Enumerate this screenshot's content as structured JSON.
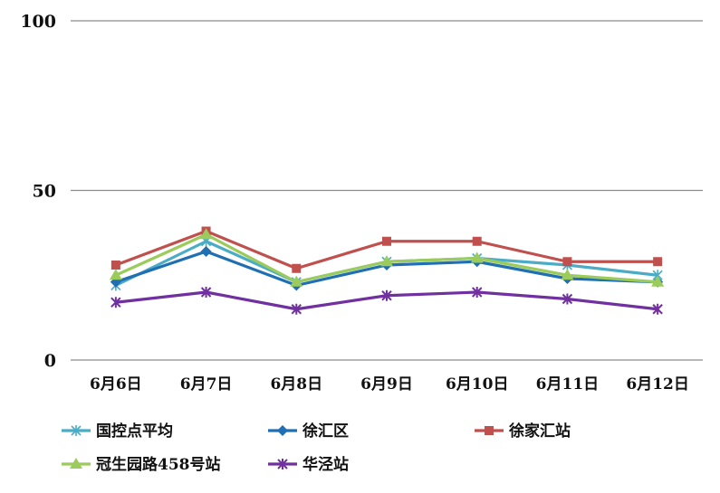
{
  "chart_data": {
    "type": "line",
    "title": "",
    "xlabel": "",
    "ylabel": "",
    "ylim": [
      0,
      100
    ],
    "yticks": [
      0,
      50,
      100
    ],
    "grid": true,
    "legend_position": "bottom",
    "categories": [
      "6月6日",
      "6月7日",
      "6月8日",
      "6月9日",
      "6月10日",
      "6月11日",
      "6月12日"
    ],
    "series": [
      {
        "name": "国控点平均",
        "color": "#4BACC6",
        "marker": "asterisk",
        "values": [
          22,
          35,
          23,
          29,
          30,
          28,
          25
        ]
      },
      {
        "name": "徐汇区",
        "color": "#1F6FB2",
        "marker": "diamond",
        "values": [
          23,
          32,
          22,
          28,
          29,
          24,
          23
        ]
      },
      {
        "name": "徐家汇站",
        "color": "#C0504D",
        "marker": "square",
        "values": [
          28,
          38,
          27,
          35,
          35,
          29,
          29
        ]
      },
      {
        "name": "冠生园路458号站",
        "color": "#9BCB5A",
        "marker": "triangle",
        "values": [
          25,
          37,
          23,
          29,
          30,
          25,
          23
        ]
      },
      {
        "name": "华泾站",
        "color": "#7030A0",
        "marker": "star",
        "values": [
          17,
          20,
          15,
          19,
          20,
          18,
          15
        ]
      }
    ]
  }
}
